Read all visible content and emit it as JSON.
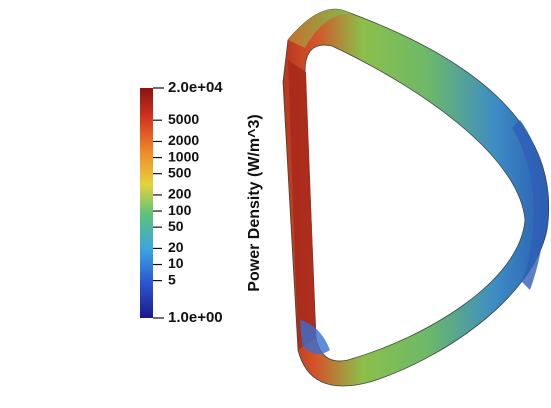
{
  "colorbar": {
    "title": "Power Density (W/m^3)",
    "scale": "log",
    "range": [
      {
        "value": 1,
        "label": "1.0e+00"
      },
      {
        "value": 20000,
        "label": "2.0e+04"
      }
    ],
    "ticks": [
      5,
      10,
      20,
      50,
      100,
      200,
      500,
      1000,
      2000,
      5000
    ]
  }
}
